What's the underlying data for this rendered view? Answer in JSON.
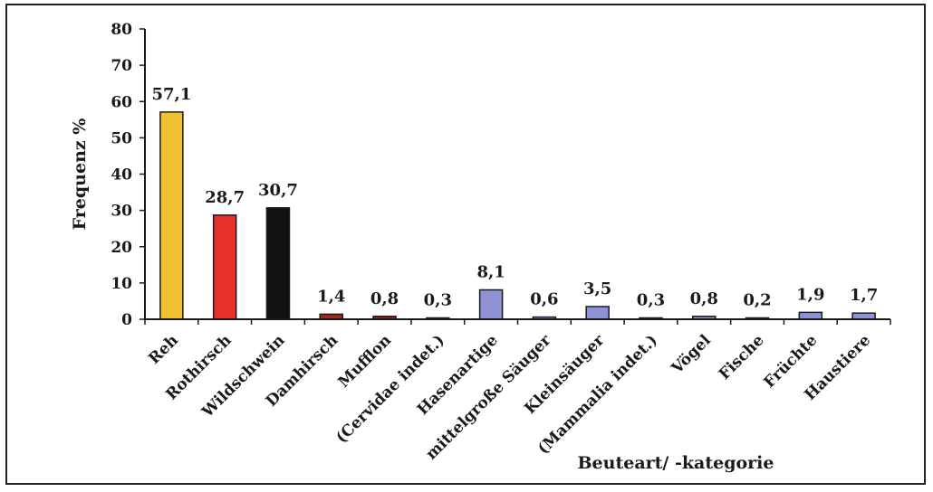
{
  "chart_data": {
    "type": "bar",
    "title": "",
    "xlabel": "Beuteart/ -kategorie",
    "ylabel": "Frequenz %",
    "ylim": [
      0,
      80
    ],
    "yticks": [
      0,
      10,
      20,
      30,
      40,
      50,
      60,
      70,
      80
    ],
    "grid": false,
    "legend": "none",
    "categories": [
      "Reh",
      "Rothirsch",
      "Wildschwein",
      "Damhirsch",
      "Mufflon",
      "(Cervidae indet.)",
      "Hasenartige",
      "mittelgroße Säuger",
      "Kleinsäuger",
      "(Mammalia indet.)",
      "Vögel",
      "Fische",
      "Früchte",
      "Haustiere"
    ],
    "values": [
      57.1,
      28.7,
      30.7,
      1.4,
      0.8,
      0.3,
      8.1,
      0.6,
      3.5,
      0.3,
      0.8,
      0.2,
      1.9,
      1.7
    ],
    "value_labels": [
      "57,1",
      "28,7",
      "30,7",
      "1,4",
      "0,8",
      "0,3",
      "8,1",
      "0,6",
      "3,5",
      "0,3",
      "0,8",
      "0,2",
      "1,9",
      "1,7"
    ],
    "colors": [
      "#f0c030",
      "#e8302a",
      "#111111",
      "#9a2a20",
      "#9a2a20",
      "#9a2a20",
      "#8f93d6",
      "#8f93d6",
      "#8f93d6",
      "#8f93d6",
      "#8f93d6",
      "#8f93d6",
      "#8f93d6",
      "#8f93d6"
    ]
  }
}
